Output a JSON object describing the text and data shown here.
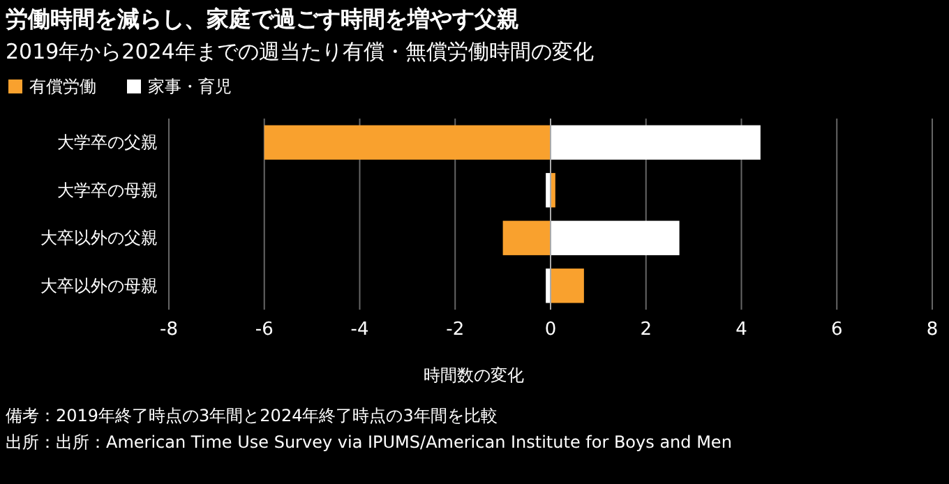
{
  "chart_data": {
    "type": "bar",
    "orientation": "horizontal",
    "stacked": true,
    "title": "労働時間を減らし、家庭で過ごす時間を増やす父親",
    "subtitle": "2019年から2024年までの週当たり有償・無償労働時間の変化",
    "xlabel": "時間数の変化",
    "categories": [
      "大学卒の父親",
      "大学卒の母親",
      "大卒以外の父親",
      "大卒以外の母親"
    ],
    "series": [
      {
        "name": "有償労働",
        "color": "#f9a12e",
        "values": [
          -6.0,
          0.1,
          -1.0,
          0.7
        ]
      },
      {
        "name": "家事・育児",
        "color": "#ffffff",
        "values": [
          4.4,
          -0.1,
          2.7,
          -0.1
        ]
      }
    ],
    "xlim": [
      -8,
      8
    ],
    "xticks": [
      -8,
      -6,
      -4,
      -2,
      0,
      2,
      4,
      6,
      8
    ],
    "grid": "x",
    "legend": "top left",
    "annotations": [
      "備考：2019年終了時点の3年間と2024年終了時点の3年間を比較",
      "出所：出所：American Time Use Survey via IPUMS/American Institute for Boys and Men"
    ]
  }
}
